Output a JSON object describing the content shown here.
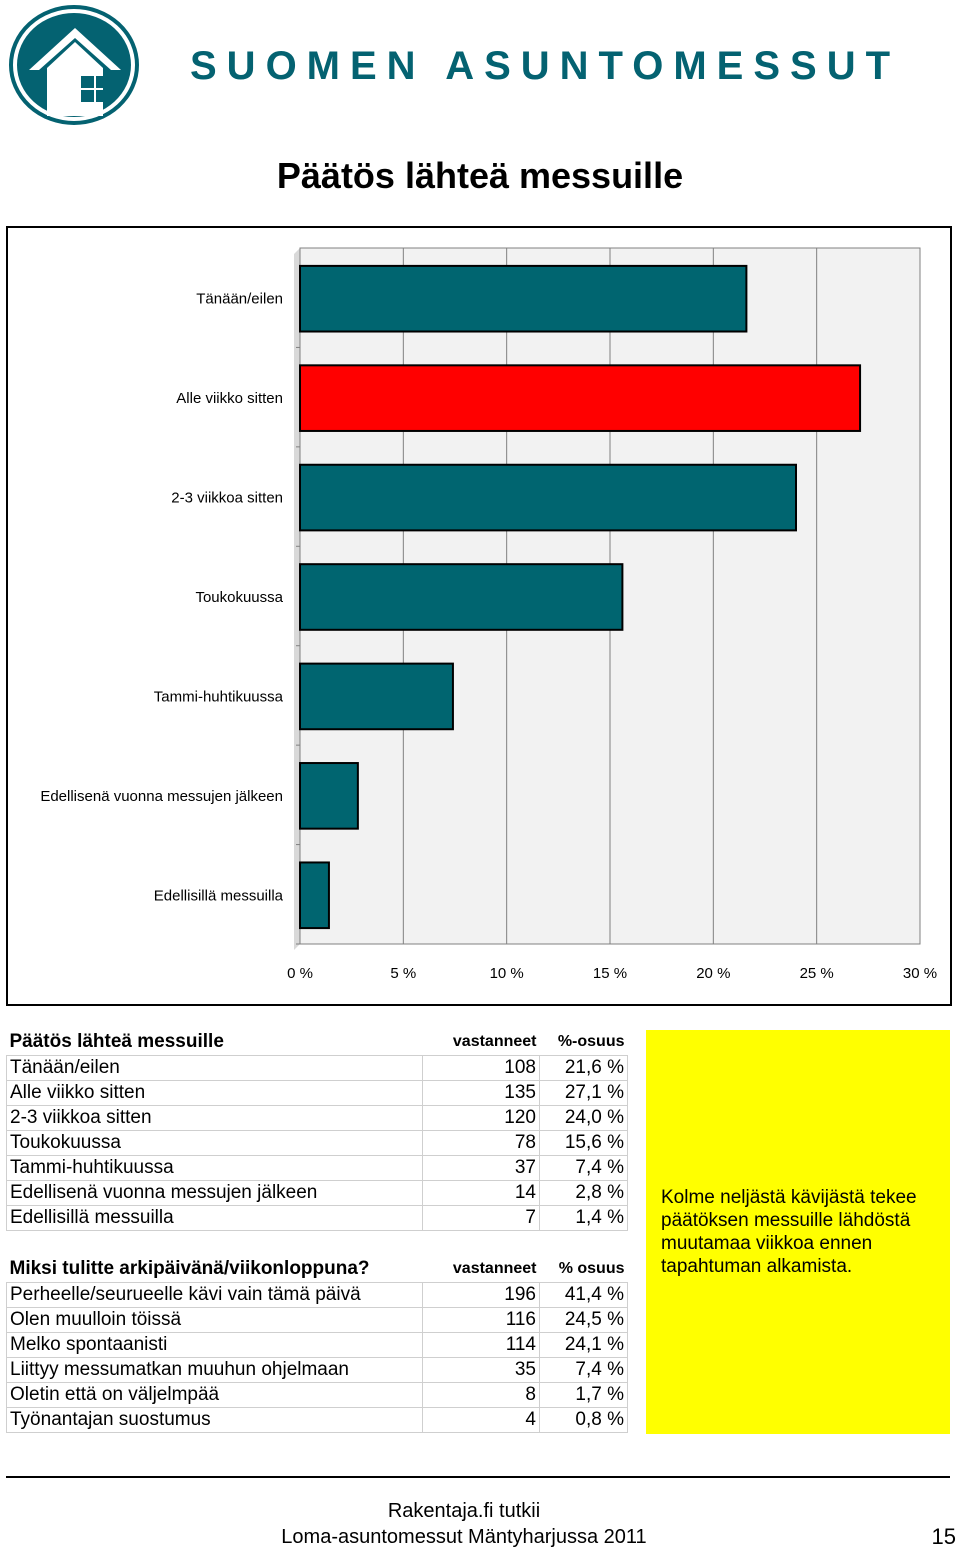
{
  "header": {
    "brand": "SUOMEN ASUNTOMESSUT",
    "logo_icon": "house-logo-icon",
    "brand_color": "#046271"
  },
  "page_title": "Päätös lähteä messuille",
  "chart_data": {
    "type": "bar",
    "orientation": "horizontal",
    "categories": [
      "Tänään/eilen",
      "Alle viikko sitten",
      "2-3 viikkoa sitten",
      "Toukokuussa",
      "Tammi-huhtikuussa",
      "Edellisenä vuonna messujen jälkeen",
      "Edellisillä messuilla"
    ],
    "values": [
      21.6,
      27.1,
      24.0,
      15.6,
      7.4,
      2.8,
      1.4
    ],
    "xlim": [
      0,
      30
    ],
    "xticks": [
      "0 %",
      "5 %",
      "10 %",
      "15 %",
      "20 %",
      "25 %",
      "30 %"
    ],
    "bar_color": "#006570",
    "highlight_color": "#ff0000",
    "highlight_index": 1,
    "plot_background": "#f2f2f2",
    "grid": true
  },
  "table1": {
    "title": "Päätös lähteä messuille",
    "col_count": "vastanneet",
    "col_share": "%-osuus",
    "rows": [
      {
        "label": "Tänään/eilen",
        "count": "108",
        "share": "21,6 %"
      },
      {
        "label": "Alle viikko sitten",
        "count": "135",
        "share": "27,1 %"
      },
      {
        "label": "2-3 viikkoa sitten",
        "count": "120",
        "share": "24,0 %"
      },
      {
        "label": "Toukokuussa",
        "count": "78",
        "share": "15,6 %"
      },
      {
        "label": "Tammi-huhtikuussa",
        "count": "37",
        "share": "7,4 %"
      },
      {
        "label": "Edellisenä vuonna messujen jälkeen",
        "count": "14",
        "share": "2,8 %"
      },
      {
        "label": "Edellisillä messuilla",
        "count": "7",
        "share": "1,4 %"
      }
    ]
  },
  "table2": {
    "title": "Miksi tulitte arkipäivänä/viikonloppuna?",
    "col_count": "vastanneet",
    "col_share": "% osuus",
    "rows": [
      {
        "label": "Perheelle/seurueelle kävi vain tämä päivä",
        "count": "196",
        "share": "41,4 %"
      },
      {
        "label": "Olen muulloin töissä",
        "count": "116",
        "share": "24,5 %"
      },
      {
        "label": "Melko spontaanisti",
        "count": "114",
        "share": "24,1 %"
      },
      {
        "label": "Liittyy messumatkan muuhun ohjelmaan",
        "count": "35",
        "share": "7,4 %"
      },
      {
        "label": "Oletin että on väljelmpää",
        "count": "8",
        "share": "1,7 %"
      },
      {
        "label": "Työnantajan suostumus",
        "count": "4",
        "share": "0,8 %"
      }
    ]
  },
  "note": {
    "text": "Kolme neljästä kävijästä tekee päätöksen messuille lähdöstä muutamaa viikkoa ennen tapahtuman alkamista.",
    "background": "#ffff00"
  },
  "footer": {
    "line1": "Rakentaja.fi tutkii",
    "line2": "Loma-asuntomessut Mäntyharjussa 2011",
    "page_number": "15"
  }
}
